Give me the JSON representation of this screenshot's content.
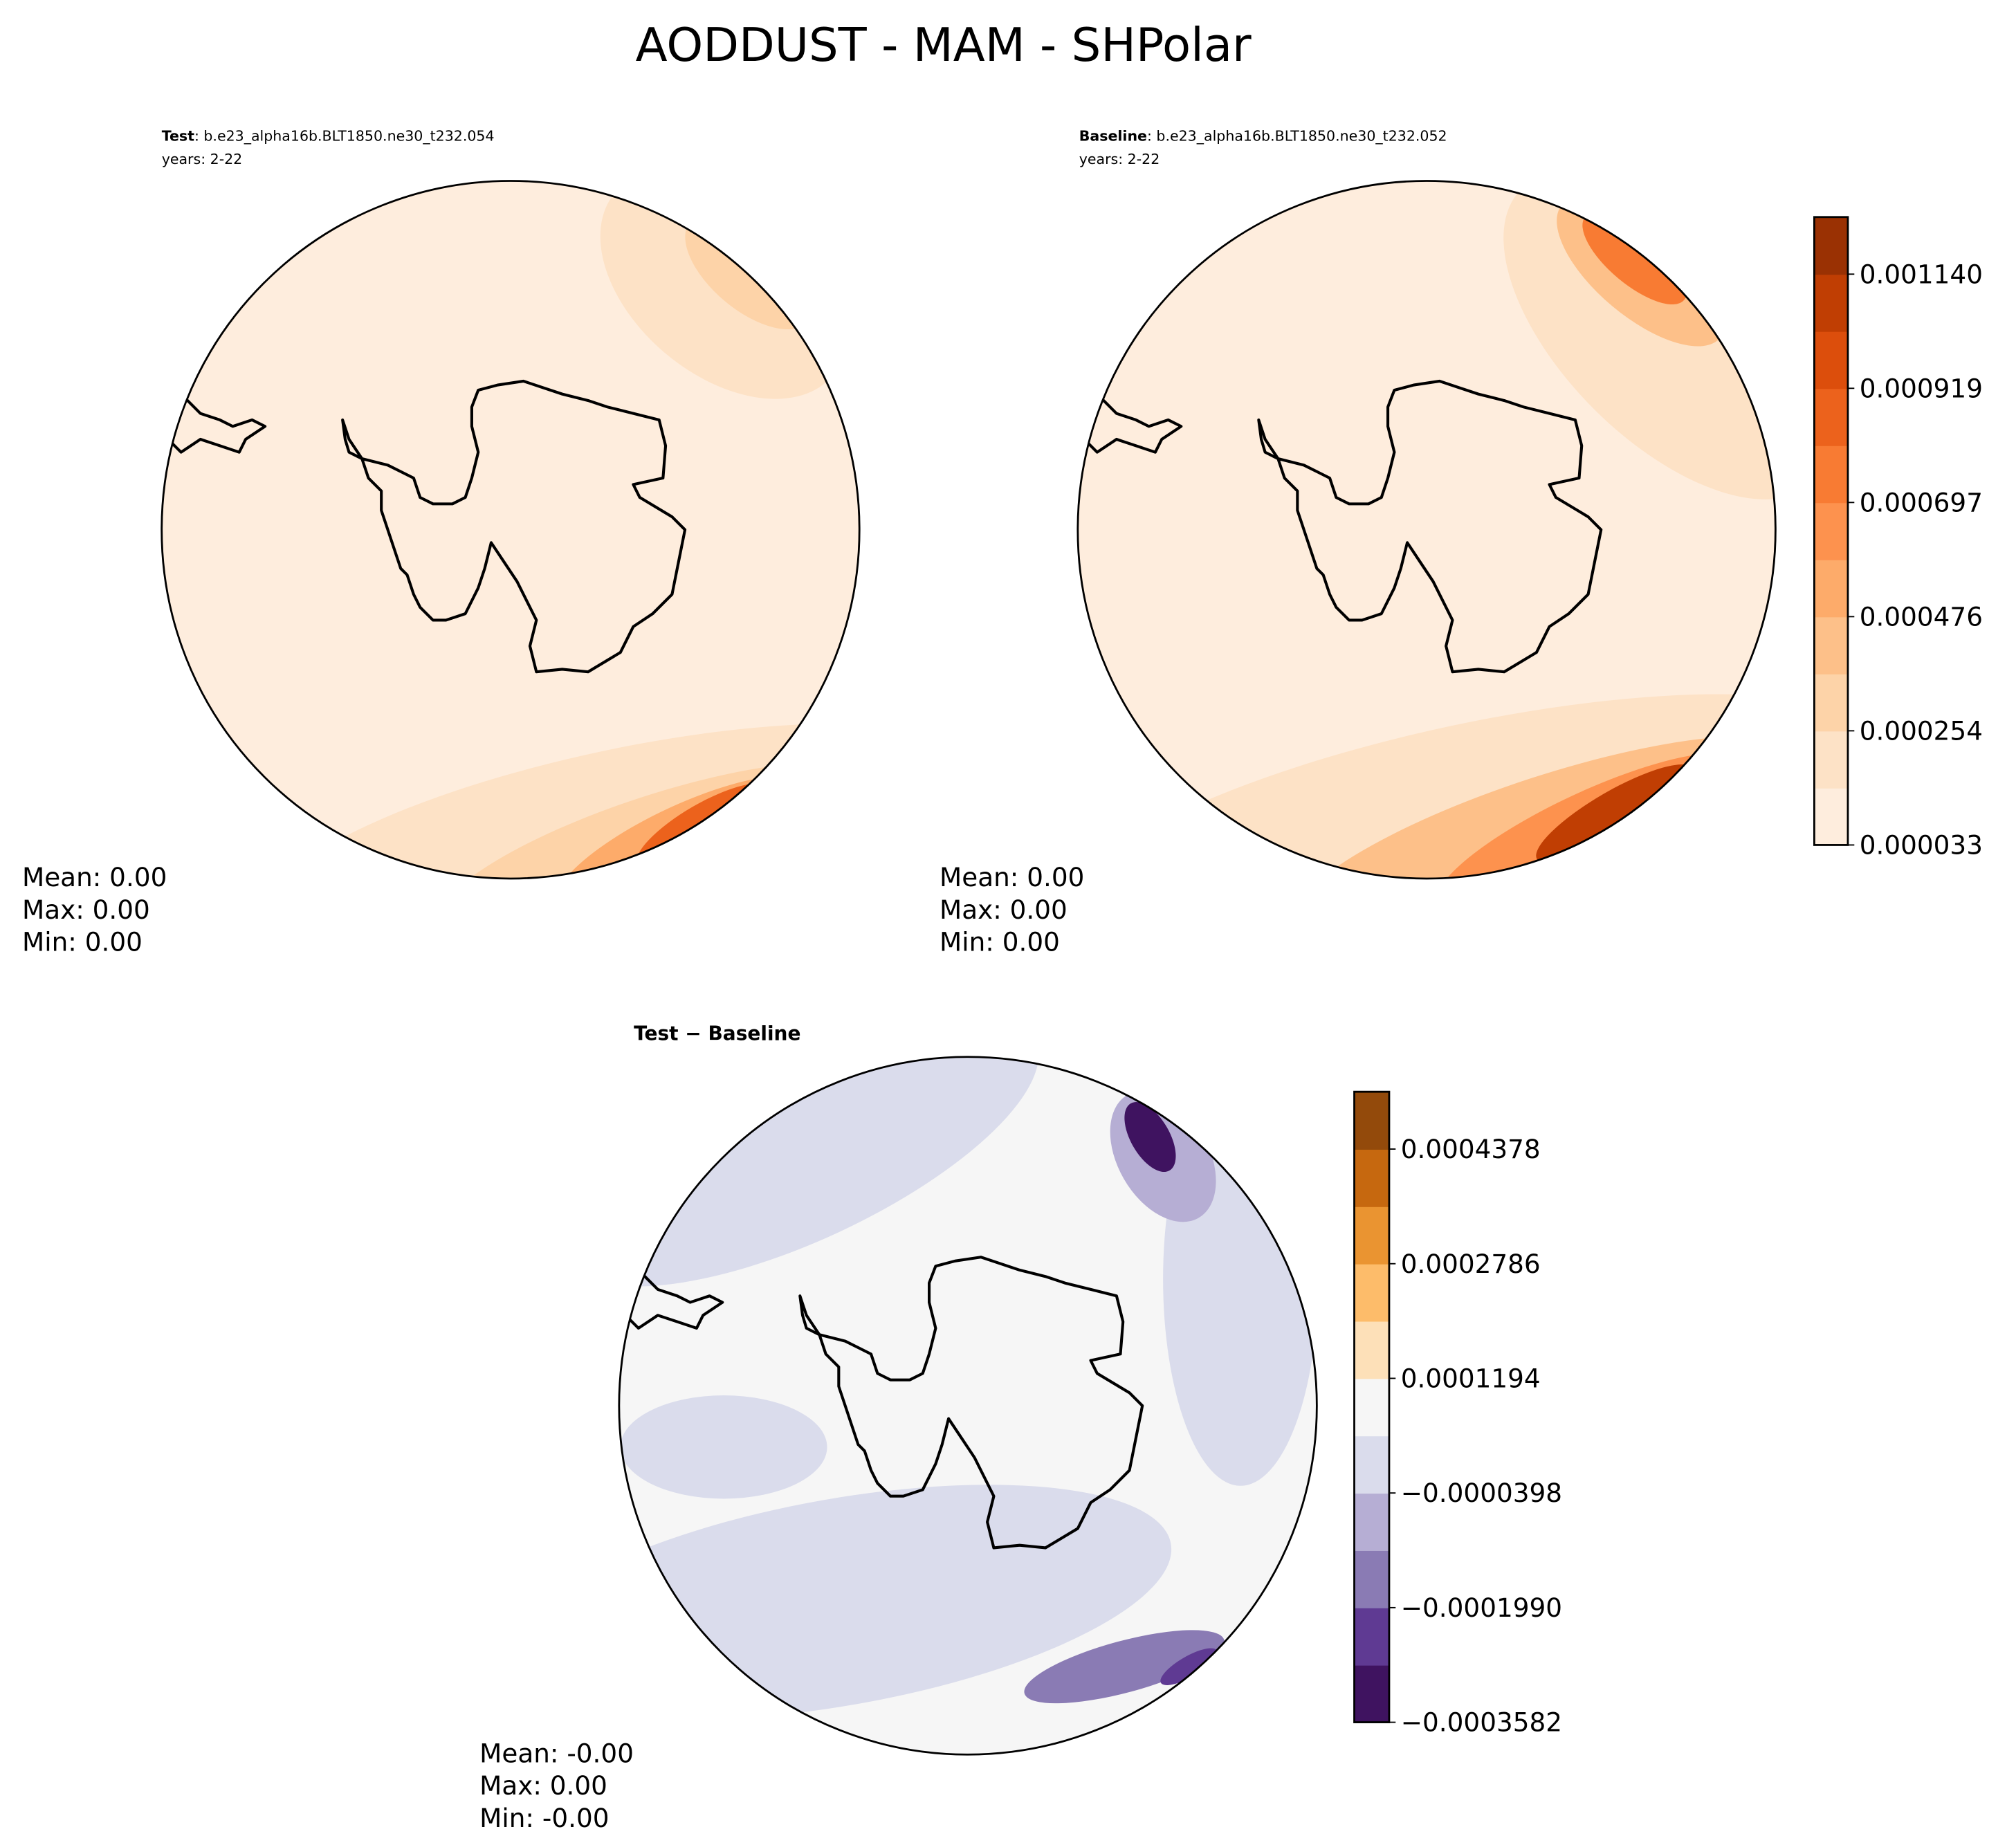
{
  "title": "AODDUST - MAM - SHPolar",
  "panels": [
    {
      "label": "Test",
      "case": ": b.e23_alpha16b.BLT1850.ne30_t232.054",
      "years": "years: 2-22",
      "stats": [
        "Mean:  0.00",
        "Max:  0.00",
        "Min:  0.00"
      ]
    },
    {
      "label": "Baseline",
      "case": ": b.e23_alpha16b.BLT1850.ne30_t232.052",
      "years": "years: 2-22",
      "stats": [
        "Mean:  0.00",
        "Max:  0.00",
        "Min:  0.00"
      ]
    },
    {
      "label": "Test − Baseline",
      "stats": [
        "Mean: -0.00",
        "Max:  0.00",
        "Min: -0.00"
      ]
    }
  ],
  "colorbars": [
    {
      "ticks": [
        "0.000033",
        "0.000254",
        "0.000476",
        "0.000697",
        "0.000919",
        "0.001140"
      ],
      "colors": [
        "#feeddd",
        "#fde2c6",
        "#fdd3a8",
        "#fdc089",
        "#fdab6a",
        "#fd924e",
        "#f87b33",
        "#ec621c",
        "#dc4e0c",
        "#c03e03",
        "#9a3103"
      ]
    },
    {
      "ticks": [
        "−0.0003582",
        "−0.0001990",
        "−0.0000398",
        "0.0001194",
        "0.0002786",
        "0.0004378"
      ],
      "colors": [
        "#3f1360",
        "#5f3a93",
        "#8a7bb4",
        "#b6aed4",
        "#dadcec",
        "#f6f6f6",
        "#fde0b8",
        "#fdbc6a",
        "#ea9431",
        "#c6680f",
        "#934a0b"
      ]
    }
  ]
}
